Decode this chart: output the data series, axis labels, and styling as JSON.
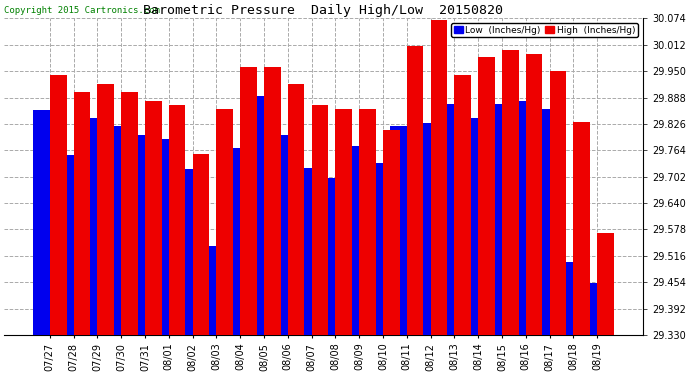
{
  "title": "Barometric Pressure  Daily High/Low  20150820",
  "copyright": "Copyright 2015 Cartronics.com",
  "legend_low": "Low  (Inches/Hg)",
  "legend_high": "High  (Inches/Hg)",
  "dates": [
    "07/27",
    "07/28",
    "07/29",
    "07/30",
    "07/31",
    "08/01",
    "08/02",
    "08/03",
    "08/04",
    "08/05",
    "08/06",
    "08/07",
    "08/08",
    "08/09",
    "08/10",
    "08/11",
    "08/12",
    "08/13",
    "08/14",
    "08/15",
    "08/16",
    "08/17",
    "08/18",
    "08/19"
  ],
  "high_values": [
    29.94,
    29.9,
    29.92,
    29.9,
    29.88,
    29.87,
    29.755,
    29.86,
    29.96,
    29.96,
    29.92,
    29.87,
    29.86,
    29.86,
    29.812,
    30.01,
    30.07,
    29.94,
    29.982,
    30.0,
    29.99,
    29.95,
    29.83,
    29.57
  ],
  "low_values": [
    29.858,
    29.752,
    29.84,
    29.822,
    29.8,
    29.79,
    29.72,
    29.54,
    29.77,
    29.892,
    29.8,
    29.722,
    29.7,
    29.775,
    29.735,
    29.822,
    29.828,
    29.872,
    29.84,
    29.872,
    29.88,
    29.86,
    29.502,
    29.452
  ],
  "ylim_min": 29.33,
  "ylim_max": 30.074,
  "yticks": [
    29.33,
    29.392,
    29.454,
    29.516,
    29.578,
    29.64,
    29.702,
    29.764,
    29.826,
    29.888,
    29.95,
    30.012,
    30.074
  ],
  "bar_width": 0.7,
  "low_color": "#0000ee",
  "high_color": "#ee0000",
  "bg_color": "#ffffff",
  "grid_color": "#aaaaaa",
  "title_color": "#000000",
  "copyright_color": "#008000",
  "figwidth": 6.9,
  "figheight": 3.75,
  "dpi": 100
}
